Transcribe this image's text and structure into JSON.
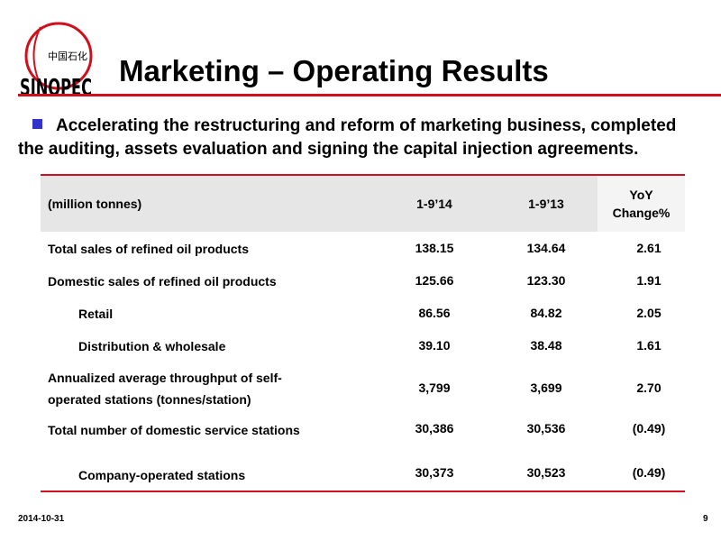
{
  "logo": {
    "chinese_text": "中国石化",
    "latin_text": "SINOPEC"
  },
  "slide": {
    "title": "Marketing – Operating Results",
    "intro": "Accelerating the restructuring and reform of marketing business, completed the auditing, assets evaluation and signing the capital injection agreements."
  },
  "table": {
    "headers": [
      "(million tonnes)",
      "1-9’14",
      "1-9’13",
      "YoY\nChange%"
    ],
    "rows": [
      {
        "label": "Total sales of refined oil products",
        "v1": "138.15",
        "v2": "134.64",
        "v3": "2.61",
        "indent": false
      },
      {
        "label": "Domestic sales of refined oil products",
        "v1": "125.66",
        "v2": "123.30",
        "v3": "1.91",
        "indent": false
      },
      {
        "label": "Retail",
        "v1": "86.56",
        "v2": "84.82",
        "v3": "2.05",
        "indent": true
      },
      {
        "label": "Distribution & wholesale",
        "v1": "39.10",
        "v2": "38.48",
        "v3": "1.61",
        "indent": true
      },
      {
        "label": "Annualized average throughput of self-operated stations (tonnes/station)",
        "v1": "3,799",
        "v2": "3,699",
        "v3": "2.70",
        "indent": false
      },
      {
        "label": "Total number of domestic service stations",
        "v1": "30,386",
        "v2": "30,536",
        "v3": "(0.49)",
        "indent": false
      },
      {
        "label": "Company-operated stations",
        "v1": "30,373",
        "v2": "30,523",
        "v3": "(0.49)",
        "indent": true
      }
    ]
  },
  "footer": {
    "date": "2014-10-31",
    "page": "9"
  },
  "colors": {
    "accent_red": "#d0101c",
    "bullet_blue": "#3333cc",
    "header_gray": "#e6e6e6"
  }
}
